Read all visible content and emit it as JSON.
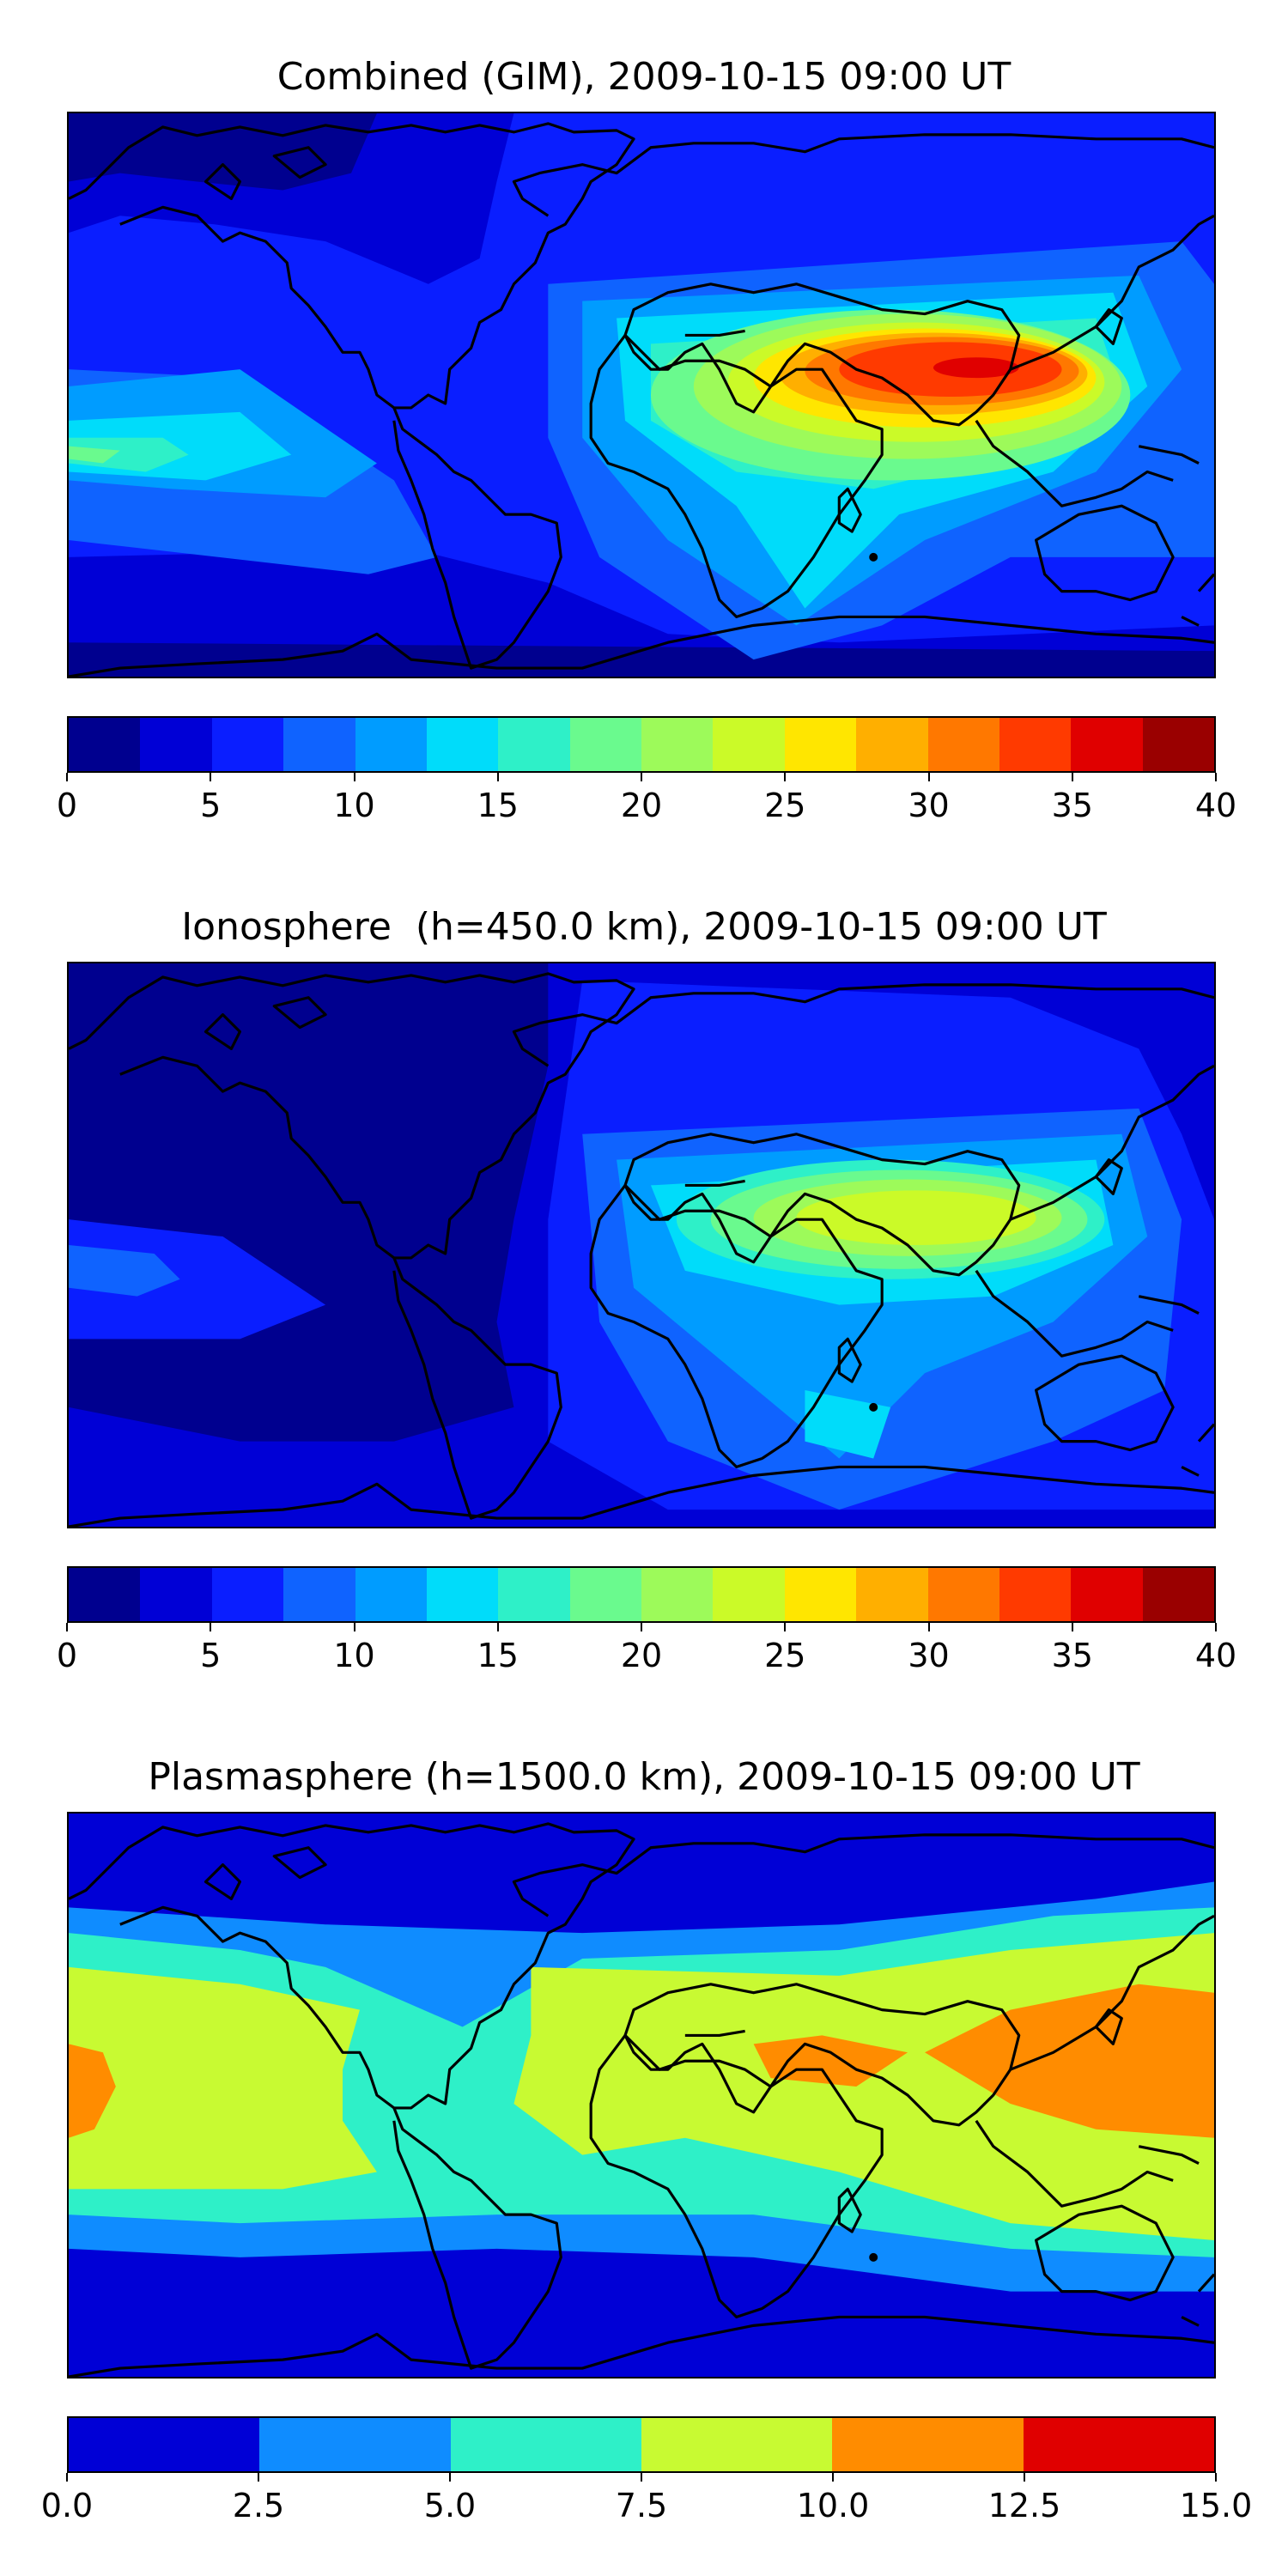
{
  "panels": [
    {
      "id": "combined",
      "title": "Combined (GIM), 2009-10-15 09:00 UT",
      "colorbar": {
        "min": 0,
        "max": 40,
        "colors": [
          "#00008f",
          "#0000d6",
          "#0a1eff",
          "#0f63ff",
          "#009cff",
          "#00dcfa",
          "#2ef0c8",
          "#6afa8e",
          "#9dfa5a",
          "#cbfa28",
          "#ffe600",
          "#ffaf00",
          "#ff7800",
          "#ff3a00",
          "#e00000",
          "#9a0000"
        ],
        "ticks": [
          "0",
          "5",
          "10",
          "15",
          "20",
          "25",
          "30",
          "35",
          "40"
        ]
      }
    },
    {
      "id": "ionosphere",
      "title": "Ionosphere  (h=450.0 km), 2009-10-15 09:00 UT",
      "colorbar": {
        "min": 0,
        "max": 40,
        "colors": [
          "#00008f",
          "#0000d6",
          "#0a1eff",
          "#0f63ff",
          "#009cff",
          "#00dcfa",
          "#2ef0c8",
          "#6afa8e",
          "#9dfa5a",
          "#cbfa28",
          "#ffe600",
          "#ffaf00",
          "#ff7800",
          "#ff3a00",
          "#e00000",
          "#9a0000"
        ],
        "ticks": [
          "0",
          "5",
          "10",
          "15",
          "20",
          "25",
          "30",
          "35",
          "40"
        ]
      }
    },
    {
      "id": "plasmasphere",
      "title": "Plasmasphere (h=1500.0 km), 2009-10-15 09:00 UT",
      "colorbar": {
        "min": 0,
        "max": 15,
        "colors": [
          "#0000d6",
          "#0f8cff",
          "#2ef0c8",
          "#c8fa32",
          "#ff8c00",
          "#e00000"
        ],
        "ticks": [
          "0.0",
          "2.5",
          "5.0",
          "7.5",
          "10.0",
          "12.5",
          "15.0"
        ]
      }
    }
  ]
}
